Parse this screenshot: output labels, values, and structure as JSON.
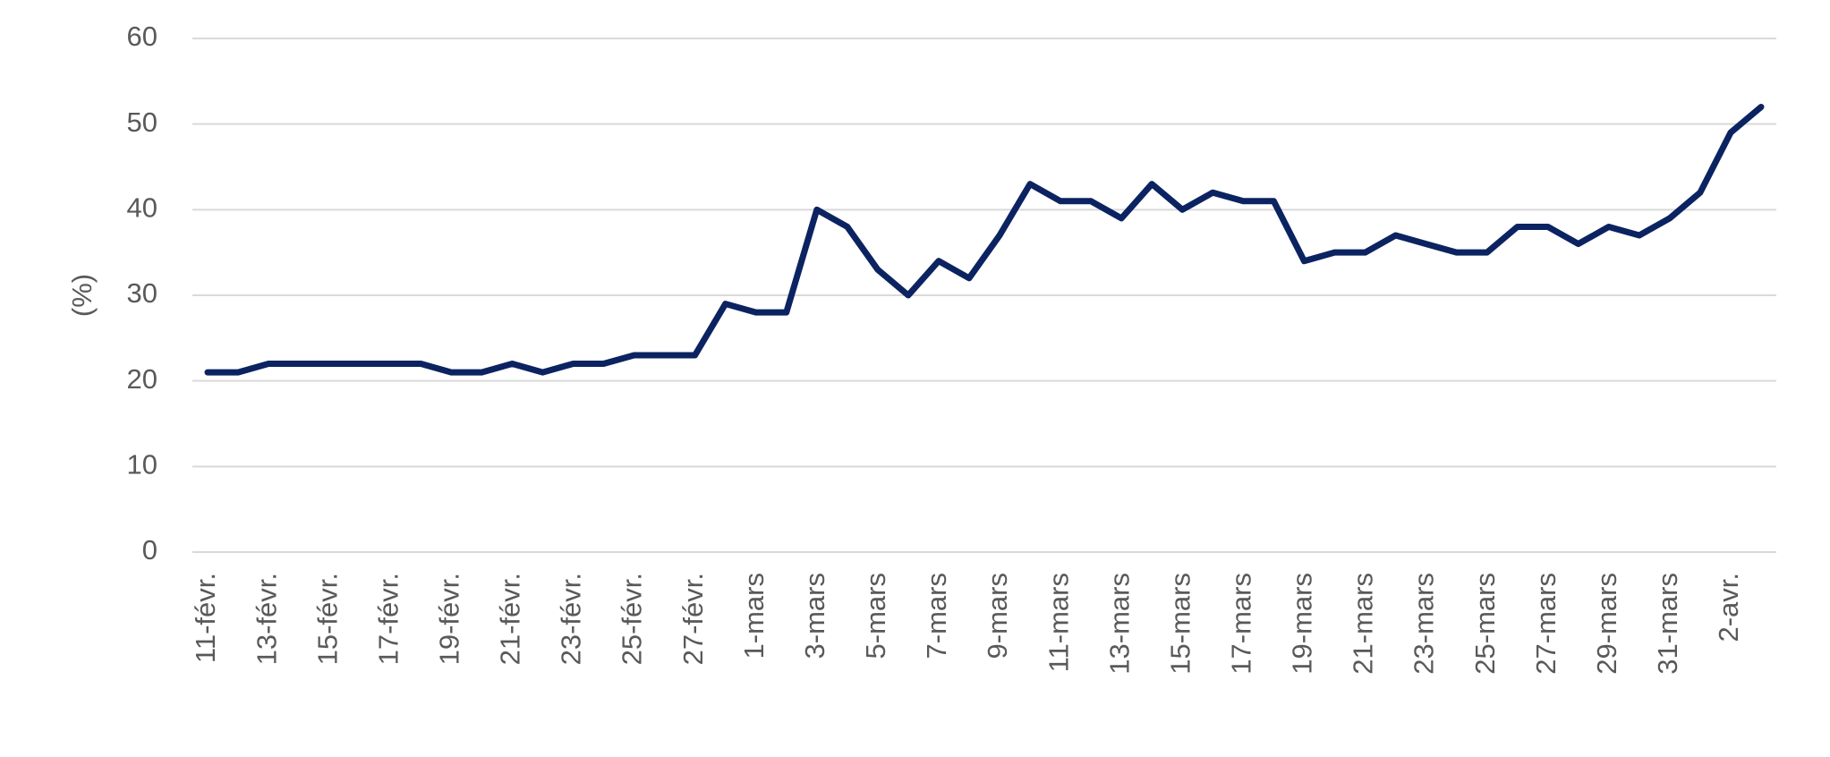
{
  "chart_data": {
    "type": "line",
    "y_label": "(%)",
    "categories": [
      "11-févr.",
      null,
      "13-févr.",
      null,
      "15-févr.",
      null,
      "17-févr.",
      null,
      "19-févr.",
      null,
      "21-févr.",
      null,
      "23-févr.",
      null,
      "25-févr.",
      null,
      "27-févr.",
      null,
      "1-mars",
      null,
      "3-mars",
      null,
      "5-mars",
      null,
      "7-mars",
      null,
      "9-mars",
      null,
      "11-mars",
      null,
      "13-mars",
      null,
      "15-mars",
      null,
      "17-mars",
      null,
      "19-mars",
      null,
      "21-mars",
      null,
      "23-mars",
      null,
      "25-mars",
      null,
      "27-mars",
      null,
      "29-mars",
      null,
      "31-mars",
      null,
      "2-avr.",
      null
    ],
    "series": [
      {
        "color": "#0b2361",
        "values": [
          21,
          21,
          22,
          22,
          22,
          22,
          22,
          22,
          21,
          21,
          22,
          21,
          22,
          22,
          23,
          23,
          23,
          29,
          28,
          28,
          40,
          38,
          33,
          30,
          34,
          32,
          37,
          43,
          41,
          41,
          39,
          43,
          40,
          42,
          41,
          41,
          34,
          35,
          35,
          37,
          36,
          35,
          35,
          38,
          38,
          36,
          38,
          37,
          39,
          42,
          49,
          52
        ]
      }
    ],
    "ylim": [
      0,
      60
    ],
    "yticks": [
      0,
      10,
      20,
      30,
      40,
      50,
      60
    ],
    "grid": true
  }
}
